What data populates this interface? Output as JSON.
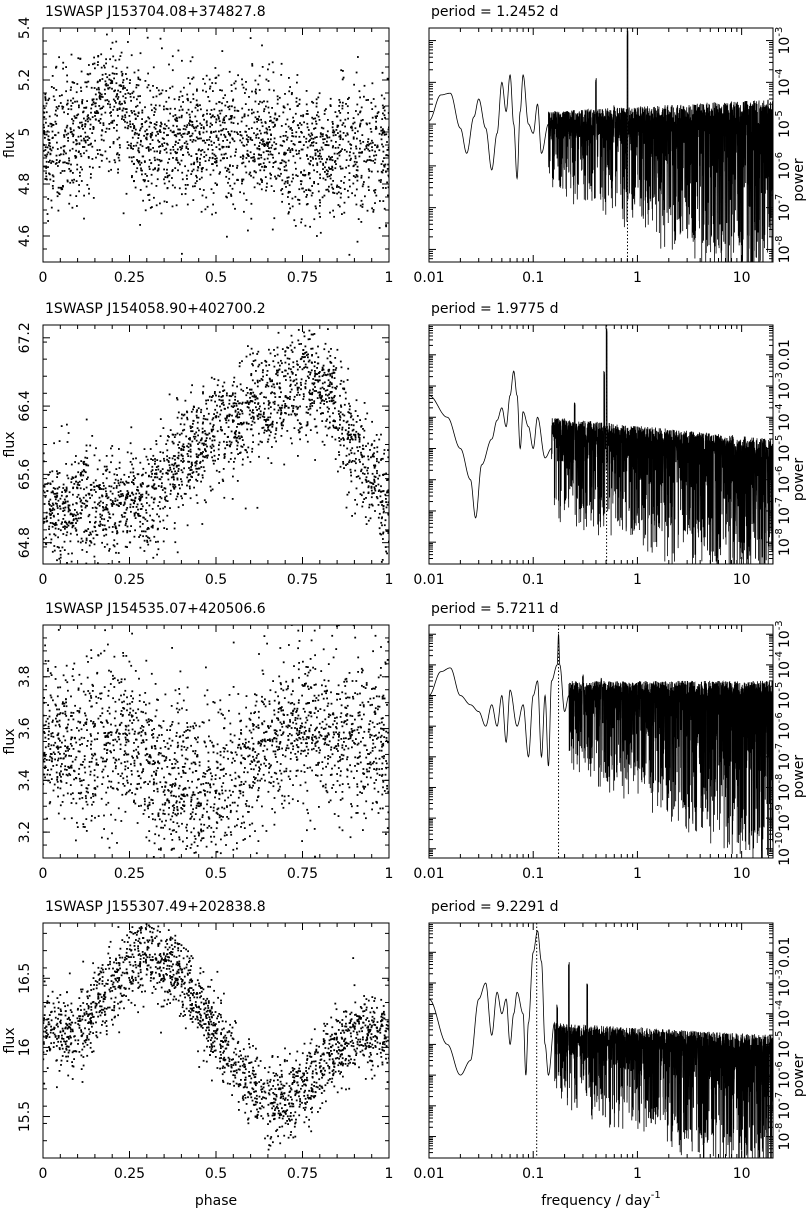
{
  "chart_data": [
    {
      "type": "scatter",
      "title": "1SWASP J153704.08+374827.8",
      "xlabel": "",
      "ylabel": "flux",
      "xlim": [
        0,
        1
      ],
      "ylim": [
        4.5,
        5.4
      ],
      "xticks": [
        0,
        0.25,
        0.5,
        0.75,
        1
      ],
      "xtick_labels": [
        "0",
        "0.25",
        "0.5",
        "0.75",
        "1"
      ],
      "yticks": [
        4.6,
        4.8,
        5.0,
        5.2,
        5.4
      ],
      "ytick_labels": [
        "4.6",
        "4.8",
        "5",
        "5.2",
        "5.4"
      ],
      "model": {
        "mean": 4.97,
        "bumps": [
          {
            "center": 0.19,
            "width": 0.05,
            "amp": 0.15
          },
          {
            "center": 0.61,
            "width": 0.05,
            "amp": 0.02
          },
          {
            "center": 0.8,
            "width": 0.1,
            "amp": -0.06
          }
        ],
        "scatter_sd": 0.13,
        "n_points": 2200
      }
    },
    {
      "type": "line",
      "title": "period =    1.2452  d",
      "xlabel": "",
      "ylabel": "power",
      "x_scale": "log",
      "y_scale": "log",
      "xlim": [
        0.01,
        20
      ],
      "ylim": [
        5e-09,
        0.002
      ],
      "xticks": [
        0.01,
        0.1,
        1,
        10
      ],
      "xtick_labels": [
        "0.01",
        "0.1",
        "1",
        "10"
      ],
      "yticks": [
        1e-08,
        1e-07,
        1e-06,
        1e-05,
        0.0001,
        0.001
      ],
      "ytick_labels": [
        [
          "10",
          "-8"
        ],
        [
          "10",
          "-7"
        ],
        [
          "10",
          "-6"
        ],
        [
          "10",
          "-5"
        ],
        [
          "10",
          "-4"
        ],
        [
          "10",
          "-3"
        ]
      ],
      "period_marker_frequency": 0.803,
      "smooth_curve": [
        [
          0.01,
          1.2e-05
        ],
        [
          0.013,
          5e-05
        ],
        [
          0.016,
          5.5e-05
        ],
        [
          0.02,
          8e-06
        ],
        [
          0.023,
          2e-06
        ],
        [
          0.027,
          1.5e-05
        ],
        [
          0.03,
          4e-05
        ],
        [
          0.035,
          8e-06
        ],
        [
          0.04,
          8e-07
        ],
        [
          0.045,
          6e-06
        ],
        [
          0.05,
          0.0001
        ],
        [
          0.055,
          2e-05
        ],
        [
          0.06,
          0.00015
        ],
        [
          0.065,
          1e-05
        ],
        [
          0.07,
          5e-07
        ],
        [
          0.075,
          2e-05
        ],
        [
          0.08,
          0.00015
        ],
        [
          0.09,
          1e-05
        ],
        [
          0.1,
          6e-06
        ],
        [
          0.11,
          3e-05
        ],
        [
          0.12,
          2e-06
        ],
        [
          0.14,
          1e-05
        ]
      ],
      "noise_band": {
        "start": 0.14,
        "end": 20,
        "upper_start": 2e-05,
        "upper_end": 4e-05,
        "lower_start": 3e-06,
        "lower_end": 5e-09
      },
      "peaks": [
        [
          0.803,
          0.0018
        ],
        [
          0.4,
          0.00015
        ],
        [
          0.6,
          3e-05
        ]
      ]
    },
    {
      "type": "scatter",
      "title": "1SWASP J154058.90+402700.2",
      "xlabel": "",
      "ylabel": "flux",
      "xlim": [
        0,
        1
      ],
      "ylim": [
        64.55,
        67.35
      ],
      "xticks": [
        0,
        0.25,
        0.5,
        0.75,
        1
      ],
      "xtick_labels": [
        "0",
        "0.25",
        "0.5",
        "0.75",
        "1"
      ],
      "yticks": [
        64.8,
        65.6,
        66.4,
        67.2
      ],
      "ytick_labels": [
        "64.8",
        "65.6",
        "66.4",
        "67.2"
      ],
      "model": {
        "profile": [
          [
            0.0,
            65.2
          ],
          [
            0.1,
            65.3
          ],
          [
            0.2,
            65.25
          ],
          [
            0.3,
            65.3
          ],
          [
            0.4,
            65.8
          ],
          [
            0.5,
            66.1
          ],
          [
            0.6,
            66.3
          ],
          [
            0.7,
            66.6
          ],
          [
            0.78,
            66.7
          ],
          [
            0.85,
            66.4
          ],
          [
            0.92,
            65.8
          ],
          [
            1.0,
            65.2
          ]
        ],
        "scatter_sd": 0.32,
        "n_points": 2200
      }
    },
    {
      "type": "line",
      "title": "period =    1.9775  d",
      "xlabel": "",
      "ylabel": "power",
      "x_scale": "log",
      "y_scale": "log",
      "xlim": [
        0.01,
        20
      ],
      "ylim": [
        2e-09,
        0.09
      ],
      "xticks": [
        0.01,
        0.1,
        1,
        10
      ],
      "xtick_labels": [
        "0.01",
        "0.1",
        "1",
        "10"
      ],
      "yticks": [
        1e-08,
        1e-07,
        1e-06,
        1e-05,
        0.0001,
        0.001,
        0.01
      ],
      "ytick_labels": [
        [
          "10",
          "-8"
        ],
        [
          "10",
          "-7"
        ],
        [
          "10",
          "-6"
        ],
        [
          "10",
          "-5"
        ],
        [
          "10",
          "-4"
        ],
        [
          "10",
          "-3"
        ],
        [
          "0.01",
          ""
        ]
      ],
      "period_marker_frequency": 0.506,
      "smooth_curve": [
        [
          0.01,
          0.0005
        ],
        [
          0.015,
          0.0001
        ],
        [
          0.02,
          1e-05
        ],
        [
          0.025,
          1e-06
        ],
        [
          0.028,
          6e-08
        ],
        [
          0.032,
          3e-06
        ],
        [
          0.04,
          2e-05
        ],
        [
          0.045,
          8e-05
        ],
        [
          0.05,
          0.0002
        ],
        [
          0.055,
          5e-05
        ],
        [
          0.06,
          0.0005
        ],
        [
          0.065,
          0.003
        ],
        [
          0.07,
          0.0005
        ],
        [
          0.075,
          1e-05
        ],
        [
          0.08,
          0.00015
        ],
        [
          0.09,
          5e-05
        ],
        [
          0.1,
          1e-05
        ],
        [
          0.11,
          0.0001
        ],
        [
          0.13,
          5e-06
        ],
        [
          0.15,
          1e-05
        ]
      ],
      "noise_band": {
        "start": 0.15,
        "end": 20,
        "upper_start": 0.0001,
        "upper_end": 2e-05,
        "lower_start": 5e-07,
        "lower_end": 2e-09
      },
      "peaks": [
        [
          0.506,
          0.07
        ],
        [
          0.48,
          0.003
        ],
        [
          0.25,
          0.0003
        ]
      ]
    },
    {
      "type": "scatter",
      "title": "1SWASP J154535.07+420506.6",
      "xlabel": "",
      "ylabel": "flux",
      "xlim": [
        0,
        1
      ],
      "ylim": [
        3.1,
        4.0
      ],
      "xticks": [
        0,
        0.25,
        0.5,
        0.75,
        1
      ],
      "xtick_labels": [
        "0",
        "0.25",
        "0.5",
        "0.75",
        "1"
      ],
      "yticks": [
        3.2,
        3.4,
        3.6,
        3.8
      ],
      "ytick_labels": [
        "3.2",
        "3.4",
        "3.6",
        "3.8"
      ],
      "model": {
        "profile": [
          [
            0.0,
            3.55
          ],
          [
            0.1,
            3.52
          ],
          [
            0.25,
            3.55
          ],
          [
            0.35,
            3.4
          ],
          [
            0.45,
            3.35
          ],
          [
            0.55,
            3.4
          ],
          [
            0.65,
            3.55
          ],
          [
            0.75,
            3.62
          ],
          [
            0.85,
            3.58
          ],
          [
            1.0,
            3.55
          ]
        ],
        "scatter_sd": 0.16,
        "n_points": 2200
      }
    },
    {
      "type": "line",
      "title": "period =    5.7211  d",
      "xlabel": "",
      "ylabel": "power",
      "x_scale": "log",
      "y_scale": "log",
      "xlim": [
        0.01,
        20
      ],
      "ylim": [
        5e-11,
        0.002
      ],
      "xticks": [
        0.01,
        0.1,
        1,
        10
      ],
      "xtick_labels": [
        "0.01",
        "0.1",
        "1",
        "10"
      ],
      "yticks": [
        1e-10,
        1e-09,
        1e-08,
        1e-07,
        1e-06,
        1e-05,
        0.0001,
        0.001
      ],
      "ytick_labels": [
        [
          "10",
          "-10"
        ],
        [
          "10",
          "-9"
        ],
        [
          "10",
          "-8"
        ],
        [
          "10",
          "-7"
        ],
        [
          "10",
          "-6"
        ],
        [
          "10",
          "-5"
        ],
        [
          "10",
          "-4"
        ],
        [
          "10",
          "-3"
        ]
      ],
      "period_marker_frequency": 0.175,
      "smooth_curve": [
        [
          0.01,
          1e-05
        ],
        [
          0.013,
          6e-05
        ],
        [
          0.016,
          8e-05
        ],
        [
          0.02,
          1e-05
        ],
        [
          0.025,
          5e-06
        ],
        [
          0.03,
          3e-06
        ],
        [
          0.035,
          1e-06
        ],
        [
          0.04,
          5e-06
        ],
        [
          0.045,
          1e-06
        ],
        [
          0.05,
          1e-05
        ],
        [
          0.055,
          3e-07
        ],
        [
          0.06,
          1.5e-05
        ],
        [
          0.07,
          1e-06
        ],
        [
          0.08,
          5e-06
        ],
        [
          0.09,
          1e-07
        ],
        [
          0.1,
          1e-05
        ],
        [
          0.11,
          3e-05
        ],
        [
          0.12,
          1e-07
        ],
        [
          0.13,
          1e-05
        ],
        [
          0.14,
          5e-08
        ],
        [
          0.15,
          3e-05
        ],
        [
          0.17,
          0.0001
        ],
        [
          0.175,
          0.001
        ],
        [
          0.18,
          0.0001
        ],
        [
          0.2,
          3e-06
        ],
        [
          0.22,
          1e-05
        ]
      ],
      "noise_band": {
        "start": 0.22,
        "end": 20,
        "upper_start": 3e-05,
        "upper_end": 3e-05,
        "lower_start": 5e-07,
        "lower_end": 1e-10
      },
      "peaks": [
        [
          0.3,
          5e-05
        ],
        [
          0.45,
          4e-05
        ]
      ]
    },
    {
      "type": "scatter",
      "title": "1SWASP J155307.49+202838.8",
      "xlabel": "phase",
      "ylabel": "flux",
      "xlim": [
        0,
        1
      ],
      "ylim": [
        15.2,
        16.9
      ],
      "xticks": [
        0,
        0.25,
        0.5,
        0.75,
        1
      ],
      "xtick_labels": [
        "0",
        "0.25",
        "0.5",
        "0.75",
        "1"
      ],
      "yticks": [
        15.5,
        16,
        16.5
      ],
      "ytick_labels": [
        "15.5",
        "16",
        "16.5"
      ],
      "model": {
        "profile": [
          [
            0.0,
            16.1
          ],
          [
            0.1,
            16.1
          ],
          [
            0.2,
            16.45
          ],
          [
            0.3,
            16.7
          ],
          [
            0.4,
            16.5
          ],
          [
            0.5,
            16.1
          ],
          [
            0.6,
            15.7
          ],
          [
            0.7,
            15.6
          ],
          [
            0.8,
            15.85
          ],
          [
            0.9,
            16.1
          ],
          [
            1.0,
            16.1
          ]
        ],
        "scatter_sd": 0.14,
        "n_points": 2000
      }
    },
    {
      "type": "line",
      "title": "period =    9.2291  d",
      "xlabel": "frequency / day",
      "xlabel_sup": "-1",
      "ylabel": "power",
      "x_scale": "log",
      "y_scale": "log",
      "xlim": [
        0.01,
        20
      ],
      "ylim": [
        2e-09,
        0.09
      ],
      "xticks": [
        0.01,
        0.1,
        1,
        10
      ],
      "xtick_labels": [
        "0.01",
        "0.1",
        "1",
        "10"
      ],
      "yticks": [
        1e-08,
        1e-07,
        1e-06,
        1e-05,
        0.0001,
        0.001,
        0.01
      ],
      "ytick_labels": [
        [
          "10",
          "-8"
        ],
        [
          "10",
          "-7"
        ],
        [
          "10",
          "-6"
        ],
        [
          "10",
          "-5"
        ],
        [
          "10",
          "-4"
        ],
        [
          "10",
          "-3"
        ],
        [
          "0.01",
          ""
        ]
      ],
      "period_marker_frequency": 0.108,
      "smooth_curve": [
        [
          0.01,
          0.0003
        ],
        [
          0.015,
          1e-05
        ],
        [
          0.02,
          1e-06
        ],
        [
          0.025,
          3e-06
        ],
        [
          0.03,
          0.0003
        ],
        [
          0.035,
          0.001
        ],
        [
          0.04,
          2e-05
        ],
        [
          0.045,
          0.0005
        ],
        [
          0.05,
          0.0001
        ],
        [
          0.055,
          0.0003
        ],
        [
          0.06,
          1e-05
        ],
        [
          0.065,
          0.0001
        ],
        [
          0.07,
          0.0005
        ],
        [
          0.08,
          0.0001
        ],
        [
          0.085,
          1e-06
        ],
        [
          0.09,
          5e-05
        ],
        [
          0.1,
          0.01
        ],
        [
          0.11,
          0.05
        ],
        [
          0.12,
          0.005
        ],
        [
          0.13,
          1e-05
        ],
        [
          0.14,
          1e-06
        ],
        [
          0.16,
          5e-05
        ]
      ],
      "noise_band": {
        "start": 0.16,
        "end": 20,
        "upper_start": 5e-05,
        "upper_end": 2e-05,
        "lower_start": 1e-06,
        "lower_end": 2e-09
      },
      "peaks": [
        [
          0.22,
          0.005
        ],
        [
          0.33,
          0.001
        ],
        [
          0.17,
          0.0002
        ]
      ]
    }
  ]
}
